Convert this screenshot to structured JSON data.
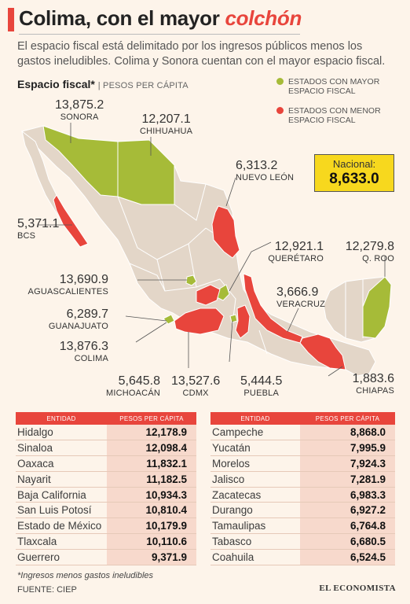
{
  "title": {
    "main": "Colima, con el mayor",
    "emphasis": "colchón"
  },
  "subtitle": "El espacio fiscal está delimitado por los ingresos públicos menos los gastos ineludibles. Colima y Sonora cuentan con el mayor espacio fiscal.",
  "section": {
    "label": "Espacio fiscal*",
    "unit": "PESOS PER CÁPITA"
  },
  "legend": {
    "high": {
      "label": "ESTADOS CON MAYOR ESPACIO FISCAL",
      "color": "#a6bb38"
    },
    "low": {
      "label": "ESTADOS CON MENOR ESPACIO FISCAL",
      "color": "#e8453c"
    }
  },
  "nacional": {
    "label": "Nacional:",
    "value": "8,633.0"
  },
  "map_labels": {
    "sonora": {
      "value": "13,875.2",
      "name": "SONORA"
    },
    "chihuahua": {
      "value": "12,207.1",
      "name": "CHIHUAHUA"
    },
    "nuevo_leon": {
      "value": "6,313.2",
      "name": "NUEVO LEÓN"
    },
    "bcs": {
      "value": "5,371.1",
      "name": "BCS"
    },
    "queretaro": {
      "value": "12,921.1",
      "name": "QUERÉTARO"
    },
    "qroo": {
      "value": "12,279.8",
      "name": "Q. ROO"
    },
    "aguascalientes": {
      "value": "13,690.9",
      "name": "AGUASCALIENTES"
    },
    "veracruz": {
      "value": "3,666.9",
      "name": "VERACRUZ"
    },
    "guanajuato": {
      "value": "6,289.7",
      "name": "GUANAJUATO"
    },
    "colima": {
      "value": "13,876.3",
      "name": "COLIMA"
    },
    "chiapas": {
      "value": "1,883.6",
      "name": "CHIAPAS"
    },
    "michoacan": {
      "value": "5,645.8",
      "name": "MICHOACÁN"
    },
    "cdmx": {
      "value": "13,527.6",
      "name": "CDMX"
    },
    "puebla": {
      "value": "5,444.5",
      "name": "PUEBLA"
    }
  },
  "table_headers": {
    "entity": "ENTIDAD",
    "value": "PESOS PER CÁPITA"
  },
  "table_left": [
    {
      "entity": "Hidalgo",
      "value": "12,178.9"
    },
    {
      "entity": "Sinaloa",
      "value": "12,098.4"
    },
    {
      "entity": "Oaxaca",
      "value": "11,832.1"
    },
    {
      "entity": "Nayarit",
      "value": "11,182.5"
    },
    {
      "entity": "Baja California",
      "value": "10,934.3"
    },
    {
      "entity": "San Luis Potosí",
      "value": "10,810.4"
    },
    {
      "entity": "Estado de México",
      "value": "10,179.9"
    },
    {
      "entity": "Tlaxcala",
      "value": "10,110.6"
    },
    {
      "entity": "Guerrero",
      "value": "9,371.9"
    }
  ],
  "table_right": [
    {
      "entity": "Campeche",
      "value": "8,868.0"
    },
    {
      "entity": "Yucatán",
      "value": "7,995.9"
    },
    {
      "entity": "Morelos",
      "value": "7,924.3"
    },
    {
      "entity": "Jalisco",
      "value": "7,281.9"
    },
    {
      "entity": "Zacatecas",
      "value": "6,983.3"
    },
    {
      "entity": "Durango",
      "value": "6,927.2"
    },
    {
      "entity": "Tamaulipas",
      "value": "6,764.8"
    },
    {
      "entity": "Tabasco",
      "value": "6,680.5"
    },
    {
      "entity": "Coahuila",
      "value": "6,524.5"
    }
  ],
  "footnote": "*Ingresos menos gastos ineludibles",
  "source": "FUENTE: CIEP",
  "brand": "EL ECONOMISTA",
  "colors": {
    "base": "#e3d6c8",
    "border": "#ffffff",
    "leader": "#555555"
  }
}
